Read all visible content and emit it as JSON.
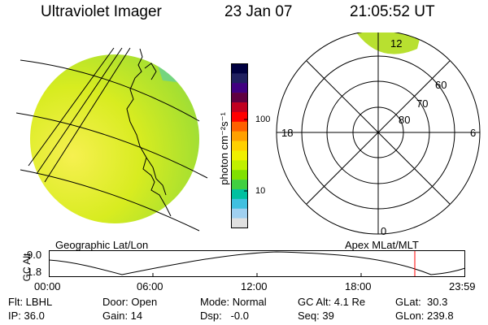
{
  "header": {
    "instrument": "Ultraviolet Imager",
    "date": "23 Jan 07",
    "time": "21:05:52 UT"
  },
  "colorbar": {
    "unit_label": "photon cm⁻²s⁻¹",
    "ticks": [
      "100",
      "10"
    ],
    "colors": [
      "#000040",
      "#202060",
      "#400080",
      "#600040",
      "#c00020",
      "#ff0000",
      "#ff6000",
      "#ffa000",
      "#ffd000",
      "#f0f000",
      "#c0f000",
      "#80e000",
      "#40d040",
      "#00c0a0",
      "#40c0e0",
      "#a0d0f0",
      "#e0e0e0"
    ]
  },
  "geo_panel": {
    "label": "Geographic Lat/Lon",
    "fill_color": "#b0e000"
  },
  "polar_panel": {
    "label": "Apex MLat/MLT",
    "mlt_labels": {
      "top": "12",
      "left": "18",
      "right": "6",
      "bottom": "0"
    },
    "lat_labels": [
      "60",
      "70",
      "80"
    ]
  },
  "orbit_plot": {
    "ylabel": "GC Alt",
    "ymax": "9.0",
    "ymin": "1.8",
    "x_ticks": [
      "00:00",
      "06:00",
      "12:00",
      "18:00",
      "23:59"
    ],
    "marker_color": "#ff0000",
    "current_fraction": 0.879
  },
  "status": {
    "flt": "Flt: LBHL",
    "ip": "IP: 36.0",
    "door": "Door: Open",
    "gain": "Gain: 14",
    "mode": "Mode: Normal",
    "dsp": "Dsp:   -0.0",
    "gc_alt": "GC Alt: 4.1 Re",
    "seq": "Seq: 39",
    "glat": "GLat:  30.3",
    "glon": "GLon: 239.8"
  }
}
